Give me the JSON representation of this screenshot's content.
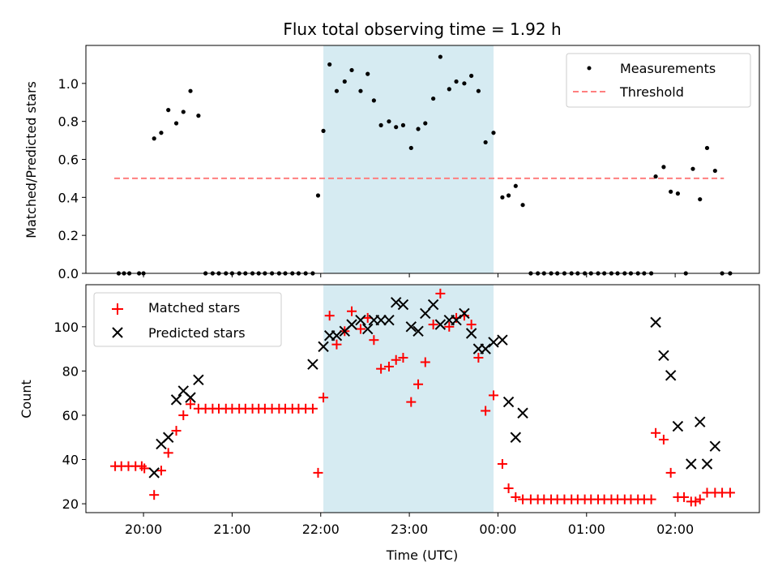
{
  "chart_data": {
    "type": "scatter",
    "title": "Flux total observing time = 1.92 h",
    "xlabel": "Time (UTC)",
    "x_ticks": [
      "20:00",
      "21:00",
      "22:00",
      "23:00",
      "00:00",
      "01:00",
      "02:00"
    ],
    "x_range_hours": [
      19.35,
      26.95
    ],
    "highlight_band_hours": [
      22.03,
      23.95
    ],
    "colors": {
      "band": "#add8e6",
      "measurements": "#000000",
      "threshold": "#ff7f7f",
      "matched": "#ff0000",
      "predicted": "#000000"
    },
    "panels": [
      {
        "id": "top",
        "ylabel": "Matched/Predicted stars",
        "ylim": [
          0,
          1.2
        ],
        "y_ticks": [
          "0.0",
          "0.2",
          "0.4",
          "0.6",
          "0.8",
          "1.0"
        ],
        "legend": {
          "location": "upper right",
          "entries": [
            "Measurements",
            "Threshold"
          ]
        },
        "threshold": {
          "value": 0.5,
          "x_range_hours": [
            19.67,
            26.55
          ]
        },
        "measurements_x_hours": [
          19.72,
          19.78,
          19.84,
          19.95,
          20.0,
          20.12,
          20.2,
          20.28,
          20.37,
          20.45,
          20.53,
          20.62,
          20.7,
          20.78,
          20.85,
          20.93,
          21.0,
          21.08,
          21.15,
          21.23,
          21.3,
          21.37,
          21.45,
          21.53,
          21.6,
          21.68,
          21.75,
          21.83,
          21.91,
          21.97,
          22.03,
          22.1,
          22.18,
          22.27,
          22.35,
          22.45,
          22.53,
          22.6,
          22.68,
          22.77,
          22.85,
          22.93,
          23.02,
          23.1,
          23.18,
          23.27,
          23.35,
          23.45,
          23.53,
          23.62,
          23.7,
          23.78,
          23.86,
          23.95,
          24.05,
          24.12,
          24.2,
          24.28,
          24.37,
          24.45,
          24.52,
          24.6,
          24.67,
          24.75,
          24.83,
          24.9,
          24.98,
          25.05,
          25.13,
          25.2,
          25.28,
          25.35,
          25.43,
          25.5,
          25.58,
          25.65,
          25.73,
          25.78,
          25.87,
          25.95,
          26.03,
          26.12,
          26.2,
          26.28,
          26.36,
          26.45,
          26.53,
          26.62
        ],
        "measurements_y": [
          0,
          0,
          0,
          0,
          0,
          0.71,
          0.74,
          0.86,
          0.79,
          0.85,
          0.96,
          0.83,
          0,
          0,
          0,
          0,
          0,
          0,
          0,
          0,
          0,
          0,
          0,
          0,
          0,
          0,
          0,
          0,
          0,
          0.41,
          0.75,
          1.1,
          0.96,
          1.01,
          1.07,
          0.96,
          1.05,
          0.91,
          0.78,
          0.8,
          0.77,
          0.78,
          0.66,
          0.76,
          0.79,
          0.92,
          1.14,
          0.97,
          1.01,
          1.0,
          1.04,
          0.96,
          0.69,
          0.74,
          0.4,
          0.41,
          0.46,
          0.36,
          0,
          0,
          0,
          0,
          0,
          0,
          0,
          0,
          0,
          0,
          0,
          0,
          0,
          0,
          0,
          0,
          0,
          0,
          0,
          0.51,
          0.56,
          0.43,
          0.42,
          0,
          0.55,
          0.39,
          0.66,
          0.54,
          0,
          0
        ]
      },
      {
        "id": "bottom",
        "ylabel": "Count",
        "ylim": [
          16,
          119
        ],
        "y_ticks": [
          "20",
          "40",
          "60",
          "80",
          "100"
        ],
        "legend": {
          "location": "upper left",
          "entries": [
            "Matched stars",
            "Predicted stars"
          ]
        },
        "matched_x_hours": [
          19.68,
          19.75,
          19.83,
          19.91,
          19.98,
          20.01,
          20.12,
          20.2,
          20.28,
          20.37,
          20.45,
          20.53,
          20.62,
          20.7,
          20.78,
          20.85,
          20.93,
          21.0,
          21.08,
          21.15,
          21.23,
          21.3,
          21.37,
          21.45,
          21.53,
          21.6,
          21.68,
          21.75,
          21.83,
          21.91,
          21.97,
          22.03,
          22.1,
          22.18,
          22.27,
          22.35,
          22.45,
          22.53,
          22.6,
          22.68,
          22.77,
          22.85,
          22.93,
          23.02,
          23.1,
          23.18,
          23.27,
          23.35,
          23.45,
          23.53,
          23.62,
          23.7,
          23.78,
          23.86,
          23.95,
          24.05,
          24.12,
          24.2,
          24.28,
          24.37,
          24.45,
          24.52,
          24.6,
          24.67,
          24.75,
          24.83,
          24.9,
          24.98,
          25.05,
          25.13,
          25.2,
          25.28,
          25.35,
          25.43,
          25.5,
          25.58,
          25.65,
          25.73,
          25.78,
          25.87,
          25.95,
          26.03,
          26.1,
          26.18,
          26.23,
          26.28,
          26.36,
          26.45,
          26.53,
          26.62
        ],
        "matched_y": [
          37,
          37,
          37,
          37,
          37,
          36,
          24,
          35,
          43,
          53,
          60,
          65,
          63,
          63,
          63,
          63,
          63,
          63,
          63,
          63,
          63,
          63,
          63,
          63,
          63,
          63,
          63,
          63,
          63,
          63,
          34,
          68,
          105,
          92,
          98,
          107,
          99,
          104,
          94,
          81,
          82,
          85,
          86,
          66,
          74,
          84,
          101,
          115,
          100,
          104,
          105,
          101,
          86,
          62,
          69,
          38,
          27,
          23,
          22,
          22,
          22,
          22,
          22,
          22,
          22,
          22,
          22,
          22,
          22,
          22,
          22,
          22,
          22,
          22,
          22,
          22,
          22,
          22,
          52,
          49,
          34,
          23,
          23,
          21,
          21,
          22,
          25,
          25,
          25,
          25
        ],
        "predicted_x_hours": [
          20.12,
          20.2,
          20.28,
          20.37,
          20.45,
          20.53,
          20.62,
          21.91,
          22.03,
          22.1,
          22.18,
          22.27,
          22.35,
          22.45,
          22.53,
          22.6,
          22.68,
          22.77,
          22.85,
          22.93,
          23.02,
          23.1,
          23.18,
          23.27,
          23.35,
          23.45,
          23.53,
          23.62,
          23.7,
          23.78,
          23.86,
          23.95,
          24.05,
          24.12,
          24.2,
          24.28,
          25.78,
          25.87,
          25.95,
          26.03,
          26.18,
          26.28,
          26.36,
          26.45
        ],
        "predicted_y": [
          34,
          47,
          50,
          67,
          71,
          68,
          76,
          83,
          91,
          96,
          96,
          98,
          101,
          103,
          99,
          103,
          103,
          103,
          111,
          110,
          100,
          98,
          106,
          110,
          101,
          103,
          103,
          106,
          97,
          90,
          90,
          93,
          94,
          66,
          50,
          61,
          102,
          87,
          78,
          55,
          38,
          57,
          38,
          46
        ]
      }
    ]
  }
}
